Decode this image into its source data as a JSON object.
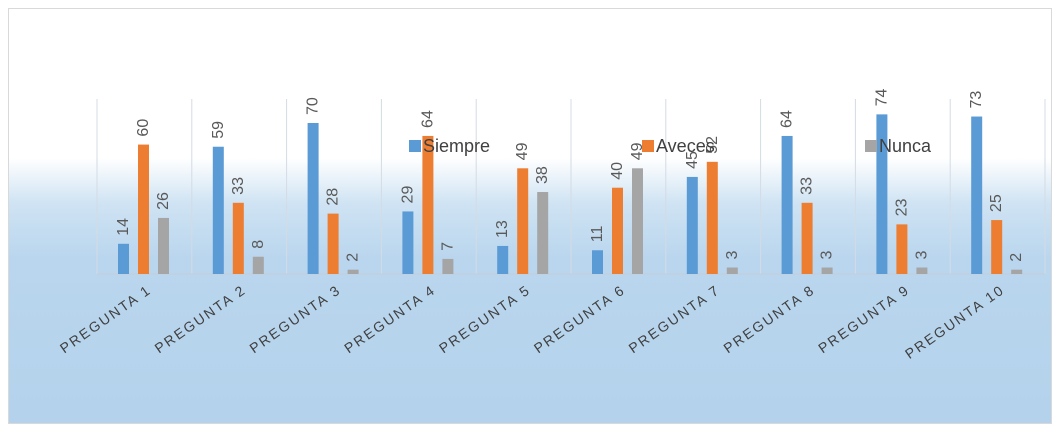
{
  "chart_data": {
    "type": "bar",
    "categories": [
      "PREGUNTA 1",
      "PREGUNTA 2",
      "PREGUNTA 3",
      "PREGUNTA 4",
      "PREGUNTA 5",
      "PREGUNTA 6",
      "PREGUNTA 7",
      "PREGUNTA 8",
      "PREGUNTA 9",
      "PREGUNTA 10"
    ],
    "series": [
      {
        "name": "Siempre",
        "color": "#5b9bd5",
        "values": [
          14,
          59,
          70,
          29,
          13,
          11,
          45,
          64,
          74,
          73
        ],
        "labels": [
          "14",
          "59",
          "70",
          "29",
          "13",
          "11",
          "45",
          "64",
          "74",
          "73"
        ]
      },
      {
        "name": "Aveces",
        "color": "#ed7d31",
        "values": [
          60,
          33,
          28,
          64,
          49,
          40,
          52,
          33,
          23,
          25
        ],
        "labels": [
          "60",
          "33",
          "28",
          "64",
          "49",
          "40",
          "52",
          "33",
          "23",
          "25"
        ]
      },
      {
        "name": "Nunca",
        "color": "#a5a5a5",
        "values": [
          26,
          8,
          2,
          7,
          38,
          49,
          3,
          3,
          3,
          2
        ],
        "labels": [
          "26",
          "8",
          "2",
          "7",
          "38",
          "49",
          "3",
          "3",
          "3",
          "2"
        ]
      }
    ],
    "ylim": [
      0,
      80
    ],
    "legend": "top-center",
    "grid": "vertical category dividers",
    "title": "",
    "xlabel": "",
    "ylabel": ""
  }
}
